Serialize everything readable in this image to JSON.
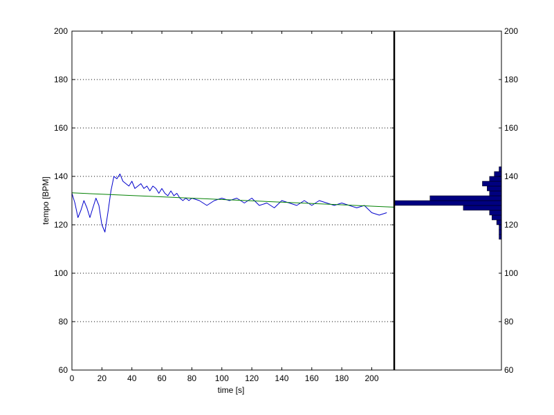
{
  "chart_data": {
    "type": "line",
    "xlabel": "time [s]",
    "ylabel": "tempo [BPM]",
    "xlim": [
      0,
      215
    ],
    "ylim": [
      60,
      200
    ],
    "x_ticks": [
      0,
      20,
      40,
      60,
      80,
      100,
      120,
      140,
      160,
      180,
      200
    ],
    "y_ticks": [
      60,
      80,
      100,
      120,
      140,
      160,
      180,
      200
    ],
    "grid": "horizontal dotted",
    "series": [
      {
        "role": "tempo",
        "color": "#0000cc",
        "x": [
          0,
          2,
          4,
          6,
          8,
          10,
          12,
          14,
          16,
          18,
          20,
          22,
          24,
          26,
          28,
          30,
          32,
          34,
          36,
          38,
          40,
          42,
          44,
          46,
          48,
          50,
          52,
          54,
          56,
          58,
          60,
          62,
          64,
          66,
          68,
          70,
          72,
          74,
          76,
          78,
          80,
          85,
          90,
          95,
          100,
          105,
          110,
          115,
          120,
          125,
          130,
          135,
          140,
          145,
          150,
          155,
          160,
          165,
          170,
          175,
          180,
          185,
          190,
          195,
          200,
          205,
          210
        ],
        "y": [
          133,
          129,
          123,
          126,
          130,
          127,
          123,
          127,
          131,
          128,
          120,
          117,
          125,
          134,
          140,
          139,
          141,
          138,
          137,
          136,
          138,
          135,
          136,
          137,
          135,
          136,
          134,
          136,
          135,
          133,
          135,
          133,
          132,
          134,
          132,
          133,
          131,
          130,
          131,
          130,
          131,
          130,
          128,
          130,
          131,
          130,
          131,
          129,
          131,
          128,
          129,
          127,
          130,
          129,
          128,
          130,
          128,
          130,
          129,
          128,
          129,
          128,
          127,
          128,
          125,
          124,
          125
        ]
      },
      {
        "role": "linear fit",
        "color": "#008000",
        "x": [
          0,
          215
        ],
        "y": [
          133.2,
          127.3
        ]
      }
    ],
    "histogram": {
      "orientation": "horizontal",
      "color": "#000080",
      "bins_center": [
        115,
        117,
        119,
        121,
        123,
        125,
        127,
        129,
        131,
        133,
        135,
        137,
        139,
        141,
        143
      ],
      "counts": [
        1,
        1,
        1,
        2,
        4,
        5,
        16,
        45,
        30,
        5,
        6,
        8,
        5,
        3,
        1
      ]
    }
  }
}
